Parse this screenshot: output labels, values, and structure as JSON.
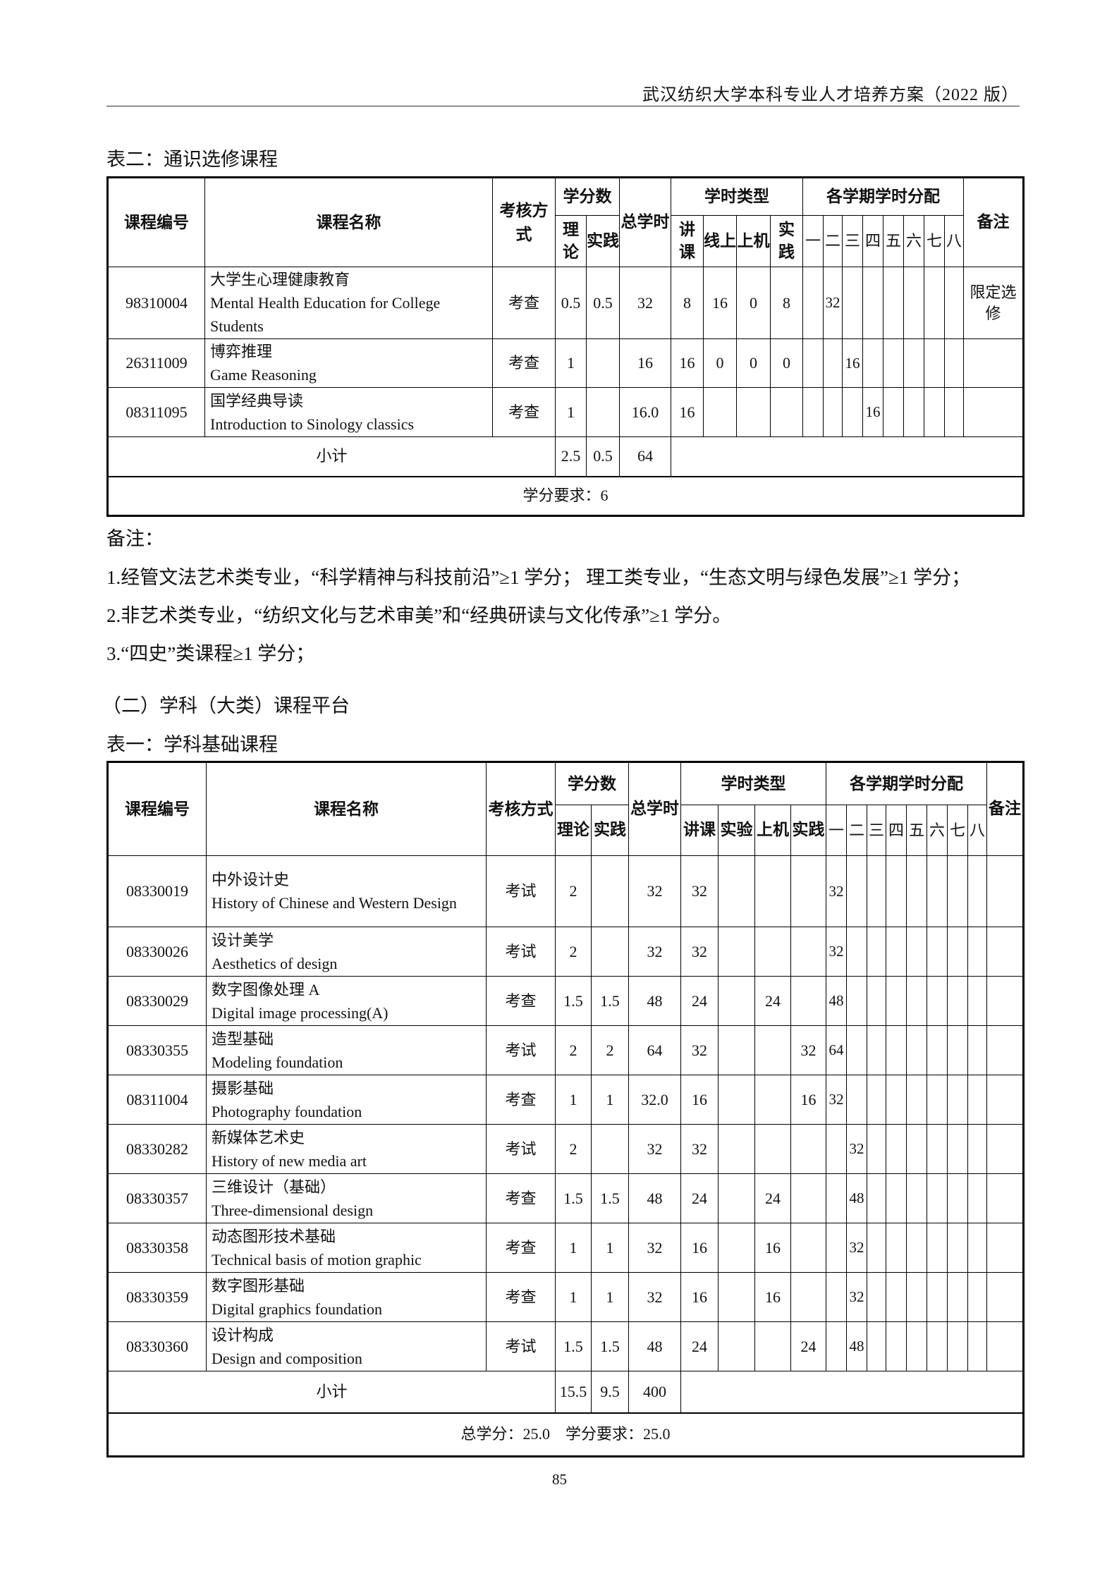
{
  "header": {
    "title": "武汉纺织大学本科专业人才培养方案（2022 版）"
  },
  "table_a": {
    "caption": "表二：通识选修课程",
    "headers": {
      "code": "课程编号",
      "name": "课程名称",
      "exam": "考核方式",
      "credits": "学分数",
      "credit_theory": "理论",
      "credit_practice": "实践",
      "total": "总学时",
      "hours_type": "学时类型",
      "hours": [
        "讲课",
        "线上",
        "上机",
        "实践"
      ],
      "semester_alloc": "各学期学时分配",
      "semesters": [
        "一",
        "二",
        "三",
        "四",
        "五",
        "六",
        "七",
        "八"
      ],
      "remark": "备注"
    },
    "rows": [
      {
        "code": "98310004",
        "name_cn": "大学生心理健康教育",
        "name_en": "Mental Health Education for College Students",
        "exam": "考查",
        "ct": "0.5",
        "cp": "0.5",
        "total": "32",
        "hours": [
          "8",
          "16",
          "0",
          "8"
        ],
        "sem": [
          "",
          "32",
          "",
          "",
          "",
          "",
          "",
          ""
        ],
        "remark": "限定选修"
      },
      {
        "code": "26311009",
        "name_cn": "博弈推理",
        "name_en": "Game Reasoning",
        "exam": "考查",
        "ct": "1",
        "cp": "",
        "total": "16",
        "hours": [
          "16",
          "0",
          "0",
          "0"
        ],
        "sem": [
          "",
          "",
          "16",
          "",
          "",
          "",
          "",
          ""
        ],
        "remark": ""
      },
      {
        "code": "08311095",
        "name_cn": "国学经典导读",
        "name_en": "Introduction to Sinology classics",
        "exam": "考查",
        "ct": "1",
        "cp": "",
        "total": "16.0",
        "hours": [
          "16",
          "",
          "",
          ""
        ],
        "sem": [
          "",
          "",
          "",
          "16",
          "",
          "",
          "",
          ""
        ],
        "remark": ""
      }
    ],
    "subtotal": {
      "label": "小计",
      "ct": "2.5",
      "cp": "0.5",
      "total": "64"
    },
    "footer": "学分要求：6"
  },
  "notes": {
    "title": "备注：",
    "items": [
      "1.经管文法艺术类专业，“科学精神与科技前沿”≥1 学分；  理工类专业，“生态文明与绿色发展”≥1 学分；",
      "2.非艺术类专业，“纺织文化与艺术审美”和“经典研读与文化传承”≥1 学分。",
      "3.“四史”类课程≥1 学分；"
    ]
  },
  "section_title": "（二）学科（大类）课程平台",
  "table_b": {
    "caption": "表一：学科基础课程",
    "headers": {
      "code": "课程编号",
      "name": "课程名称",
      "exam": "考核方式",
      "credits": "学分数",
      "credit_theory": "理论",
      "credit_practice": "实践",
      "total": "总学时",
      "hours_type": "学时类型",
      "hours": [
        "讲课",
        "实验",
        "上机",
        "实践"
      ],
      "semester_alloc": "各学期学时分配",
      "semesters": [
        "一",
        "二",
        "三",
        "四",
        "五",
        "六",
        "七",
        "八"
      ],
      "remark": "备注"
    },
    "rows": [
      {
        "code": "08330019",
        "name_cn": "中外设计史",
        "name_en": "History of Chinese and Western Design",
        "exam": "考试",
        "ct": "2",
        "cp": "",
        "total": "32",
        "hours": [
          "32",
          "",
          "",
          ""
        ],
        "sem": [
          "32",
          "",
          "",
          "",
          "",
          "",
          "",
          ""
        ],
        "remark": ""
      },
      {
        "code": "08330026",
        "name_cn": "设计美学",
        "name_en": "Aesthetics of design",
        "exam": "考试",
        "ct": "2",
        "cp": "",
        "total": "32",
        "hours": [
          "32",
          "",
          "",
          ""
        ],
        "sem": [
          "32",
          "",
          "",
          "",
          "",
          "",
          "",
          ""
        ],
        "remark": ""
      },
      {
        "code": "08330029",
        "name_cn": "数字图像处理 A",
        "name_en": "Digital image processing(A)",
        "exam": "考查",
        "ct": "1.5",
        "cp": "1.5",
        "total": "48",
        "hours": [
          "24",
          "",
          "24",
          ""
        ],
        "sem": [
          "48",
          "",
          "",
          "",
          "",
          "",
          "",
          ""
        ],
        "remark": ""
      },
      {
        "code": "08330355",
        "name_cn": "造型基础",
        "name_en": "Modeling foundation",
        "exam": "考试",
        "ct": "2",
        "cp": "2",
        "total": "64",
        "hours": [
          "32",
          "",
          "",
          "32"
        ],
        "sem": [
          "64",
          "",
          "",
          "",
          "",
          "",
          "",
          ""
        ],
        "remark": ""
      },
      {
        "code": "08311004",
        "name_cn": "摄影基础",
        "name_en": "Photography foundation",
        "exam": "考查",
        "ct": "1",
        "cp": "1",
        "total": "32.0",
        "hours": [
          "16",
          "",
          "",
          "16"
        ],
        "sem": [
          "32",
          "",
          "",
          "",
          "",
          "",
          "",
          ""
        ],
        "remark": ""
      },
      {
        "code": "08330282",
        "name_cn": "新媒体艺术史",
        "name_en": "History of new media art",
        "exam": "考试",
        "ct": "2",
        "cp": "",
        "total": "32",
        "hours": [
          "32",
          "",
          "",
          ""
        ],
        "sem": [
          "",
          "32",
          "",
          "",
          "",
          "",
          "",
          ""
        ],
        "remark": ""
      },
      {
        "code": "08330357",
        "name_cn": "三维设计（基础）",
        "name_en": "Three-dimensional design",
        "exam": "考查",
        "ct": "1.5",
        "cp": "1.5",
        "total": "48",
        "hours": [
          "24",
          "",
          "24",
          ""
        ],
        "sem": [
          "",
          "48",
          "",
          "",
          "",
          "",
          "",
          ""
        ],
        "remark": ""
      },
      {
        "code": "08330358",
        "name_cn": "动态图形技术基础",
        "name_en": "Technical basis of motion graphic",
        "exam": "考查",
        "ct": "1",
        "cp": "1",
        "total": "32",
        "hours": [
          "16",
          "",
          "16",
          ""
        ],
        "sem": [
          "",
          "32",
          "",
          "",
          "",
          "",
          "",
          ""
        ],
        "remark": ""
      },
      {
        "code": "08330359",
        "name_cn": "数字图形基础",
        "name_en": "Digital graphics foundation",
        "exam": "考查",
        "ct": "1",
        "cp": "1",
        "total": "32",
        "hours": [
          "16",
          "",
          "16",
          ""
        ],
        "sem": [
          "",
          "32",
          "",
          "",
          "",
          "",
          "",
          ""
        ],
        "remark": ""
      },
      {
        "code": "08330360",
        "name_cn": "设计构成",
        "name_en": "Design and composition",
        "exam": "考试",
        "ct": "1.5",
        "cp": "1.5",
        "total": "48",
        "hours": [
          "24",
          "",
          "",
          "24"
        ],
        "sem": [
          "",
          "48",
          "",
          "",
          "",
          "",
          "",
          ""
        ],
        "remark": ""
      }
    ],
    "subtotal": {
      "label": "小计",
      "ct": "15.5",
      "cp": "9.5",
      "total": "400"
    },
    "footer": "总学分：25.0    学分要求：25.0"
  },
  "page_number": "85"
}
